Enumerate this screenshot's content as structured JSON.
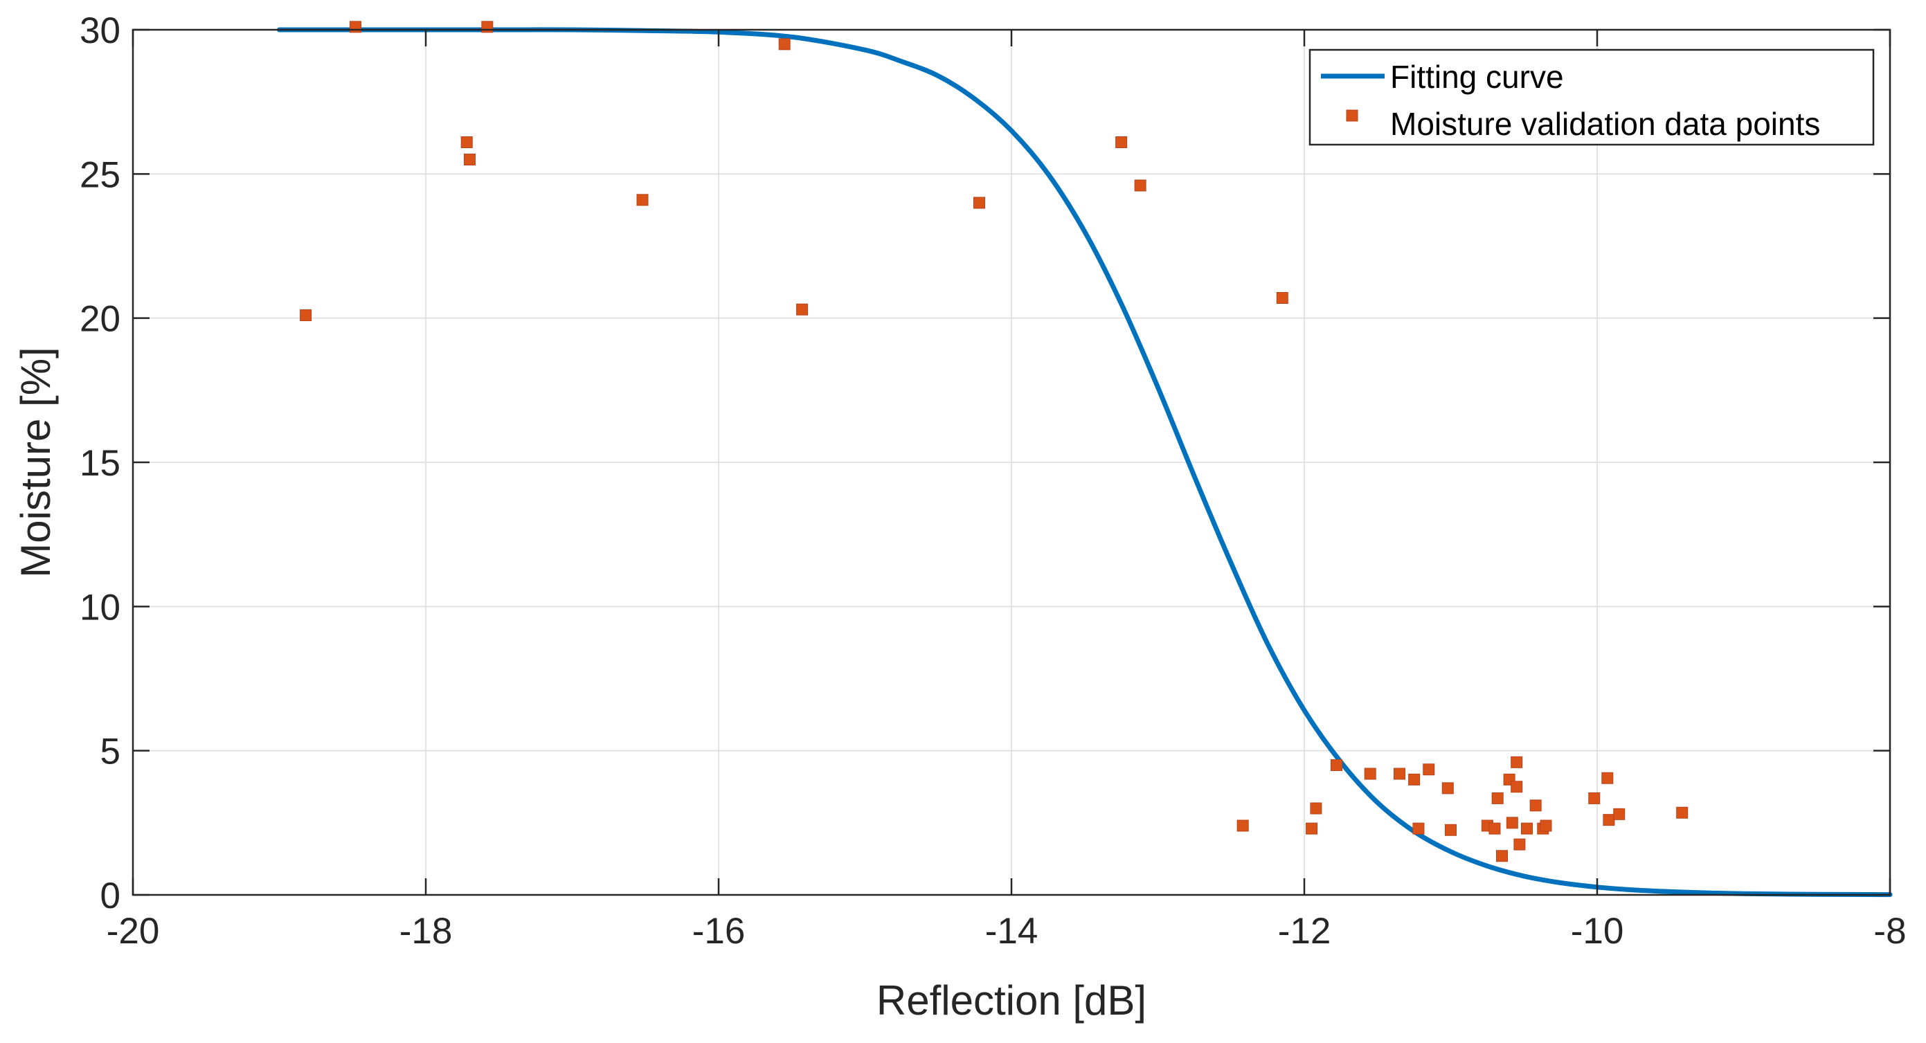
{
  "chart_data": {
    "type": "line",
    "title": "",
    "xlabel": "Reflection [dB]",
    "ylabel": "Moisture [%]",
    "xlim": [
      -20,
      -8
    ],
    "ylim": [
      0,
      30
    ],
    "xticks": [
      -20,
      -18,
      -16,
      -14,
      -12,
      -10,
      -8
    ],
    "yticks": [
      0,
      5,
      10,
      15,
      20,
      25,
      30
    ],
    "xtick_labels": [
      "-20",
      "-18",
      "-16",
      "-14",
      "-12",
      "-10",
      "-8"
    ],
    "ytick_labels": [
      "0",
      "5",
      "10",
      "15",
      "20",
      "25",
      "30"
    ],
    "grid": true,
    "legend_position": "top-right",
    "series": [
      {
        "name": "Fitting curve",
        "kind": "line",
        "color": "#0072BD",
        "x": [
          -19.0,
          -18.5,
          -18.0,
          -17.5,
          -17.0,
          -16.5,
          -16.0,
          -15.5,
          -15.0,
          -14.75,
          -14.5,
          -14.25,
          -14.0,
          -13.75,
          -13.5,
          -13.25,
          -13.0,
          -12.75,
          -12.5,
          -12.25,
          -12.0,
          -11.75,
          -11.5,
          -11.25,
          -11.0,
          -10.75,
          -10.5,
          -10.25,
          -10.0,
          -9.75,
          -9.5,
          -9.25,
          -9.0,
          -8.5,
          -8.0
        ],
        "y": [
          30.0,
          30.0,
          30.0,
          30.0,
          30.0,
          29.97,
          29.92,
          29.75,
          29.3,
          28.9,
          28.4,
          27.6,
          26.5,
          25.0,
          23.0,
          20.5,
          17.6,
          14.5,
          11.5,
          8.7,
          6.4,
          4.6,
          3.2,
          2.2,
          1.5,
          1.0,
          0.65,
          0.42,
          0.27,
          0.17,
          0.11,
          0.07,
          0.04,
          0.02,
          0.01
        ]
      },
      {
        "name": "Moisture validation data points",
        "kind": "scatter",
        "color": "#D95319",
        "x": [
          -18.82,
          -18.48,
          -17.72,
          -17.7,
          -17.58,
          -16.52,
          -15.55,
          -15.43,
          -14.22,
          -13.25,
          -13.12,
          -12.42,
          -12.15,
          -11.95,
          -11.92,
          -11.78,
          -11.55,
          -11.35,
          -11.25,
          -11.22,
          -11.15,
          -11.02,
          -11.0,
          -10.75,
          -10.7,
          -10.68,
          -10.65,
          -10.6,
          -10.58,
          -10.55,
          -10.55,
          -10.53,
          -10.48,
          -10.42,
          -10.37,
          -10.35,
          -10.02,
          -9.93,
          -9.92,
          -9.85,
          -9.42
        ],
        "y": [
          20.1,
          30.1,
          26.1,
          25.5,
          30.1,
          24.1,
          29.5,
          20.3,
          24.0,
          26.1,
          24.6,
          2.4,
          20.7,
          2.3,
          3.0,
          4.5,
          4.2,
          4.2,
          4.0,
          2.3,
          4.35,
          3.7,
          2.25,
          2.4,
          2.3,
          3.35,
          1.35,
          4.0,
          2.5,
          4.6,
          3.75,
          1.75,
          2.3,
          3.1,
          2.3,
          2.4,
          3.35,
          4.05,
          2.6,
          2.8,
          2.85
        ]
      }
    ]
  }
}
